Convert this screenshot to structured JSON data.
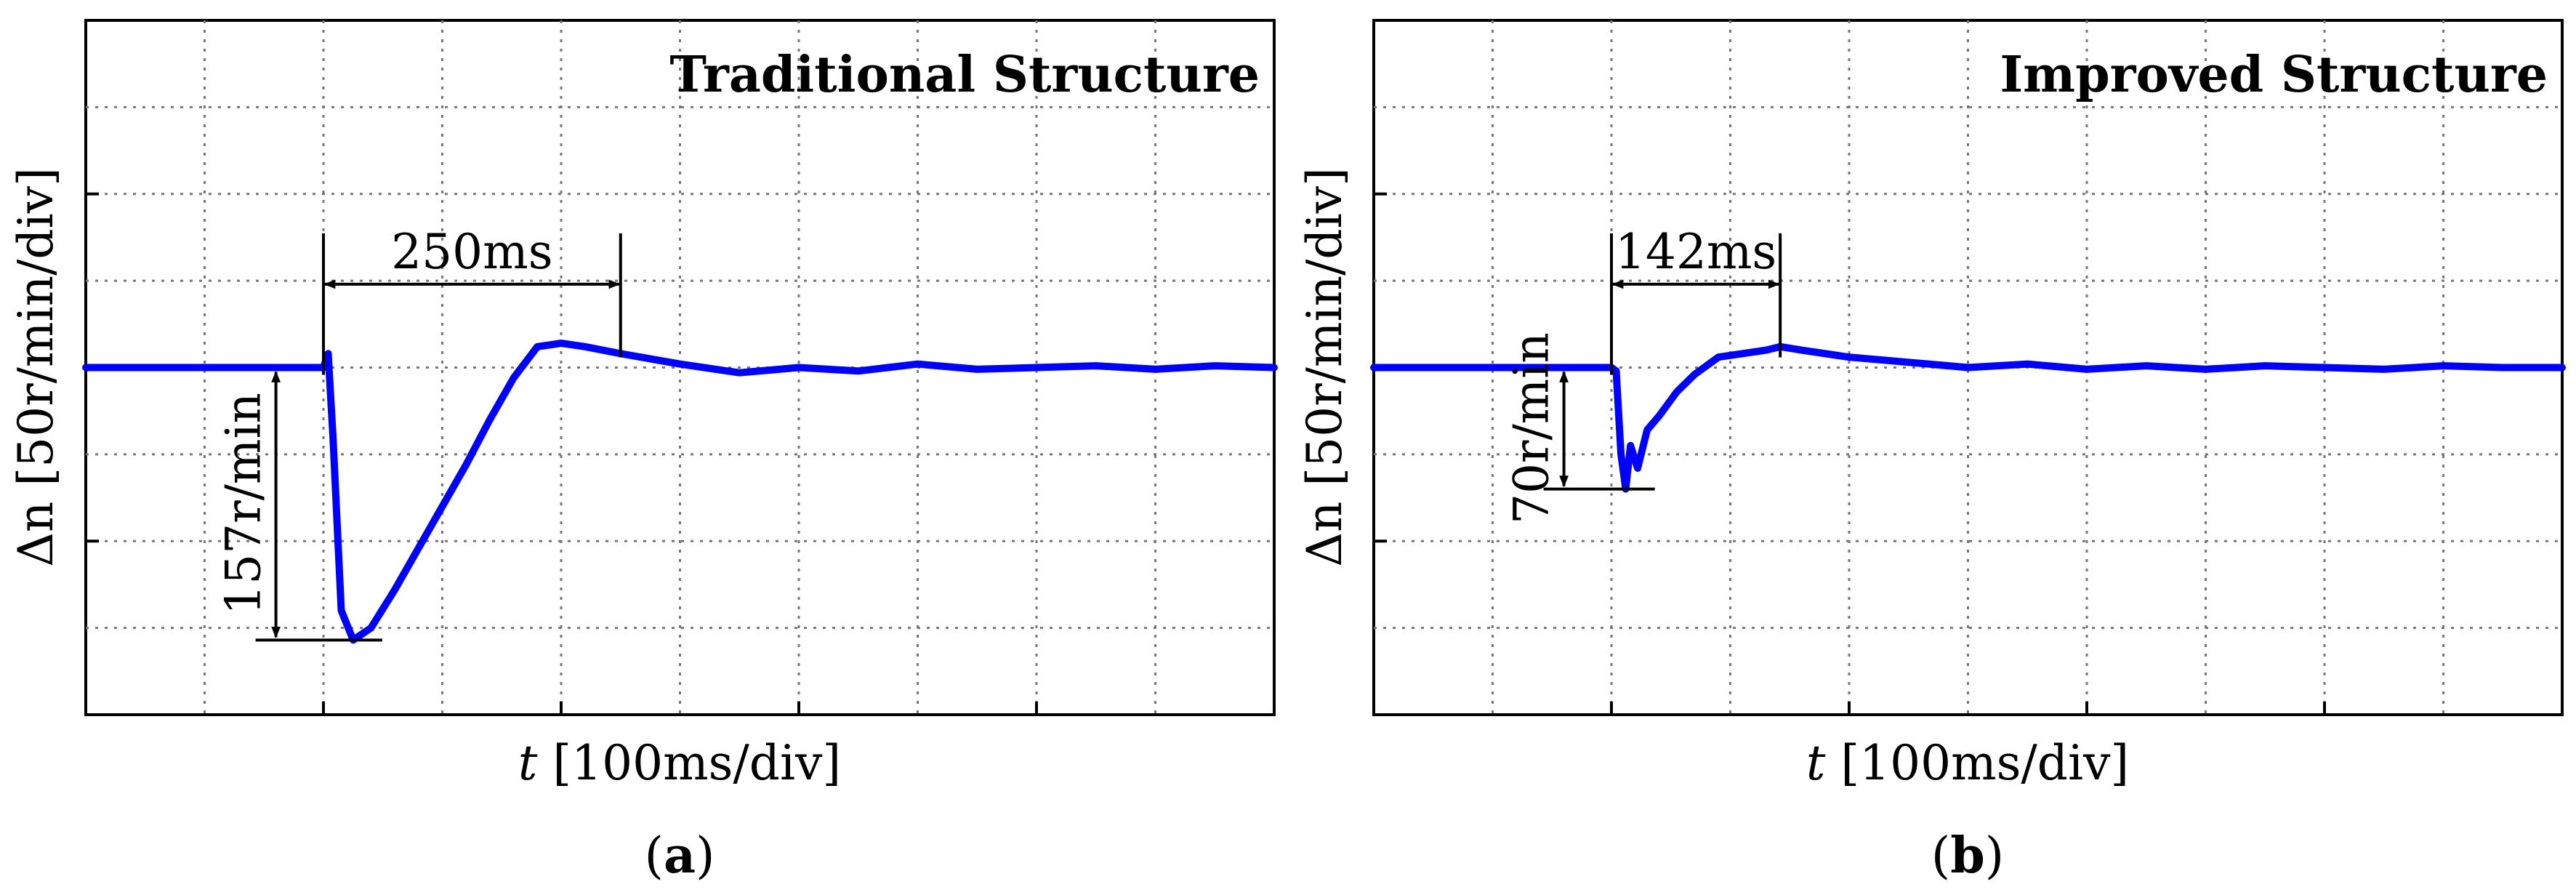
{
  "chart_data": [
    {
      "type": "line",
      "title": "Traditional Structure",
      "xlabel_var": "t",
      "xlabel_unit": "[100ms/div]",
      "ylabel_var": "Δn",
      "ylabel_unit": "[50r/min/div]",
      "x_divisions": 10,
      "y_divisions": 8,
      "grid": true,
      "x_unit": "ms",
      "y_unit": "r/min",
      "xlim": [
        0,
        1000
      ],
      "ylim": [
        -200,
        200
      ],
      "series": [
        {
          "color": "#0000ff",
          "x": [
            0,
            100,
            200,
            204,
            208,
            215,
            225,
            240,
            260,
            280,
            300,
            320,
            340,
            360,
            380,
            400,
            420,
            450,
            500,
            550,
            600,
            650,
            700,
            750,
            800,
            850,
            900,
            950,
            1000
          ],
          "values": [
            0,
            0,
            0,
            8,
            -40,
            -140,
            -157,
            -150,
            -128,
            -104,
            -80,
            -56,
            -30,
            -6,
            12,
            14,
            12,
            8,
            2,
            -3,
            0,
            -2,
            2,
            -1,
            0,
            1,
            -1,
            1,
            0
          ]
        }
      ],
      "annotations": {
        "peak_drop_label": "157r/min",
        "peak_drop_value": 157,
        "recovery_label": "250ms",
        "recovery_start": 200,
        "recovery_end": 450
      },
      "caption": "a"
    },
    {
      "type": "line",
      "title": "Improved Structure",
      "xlabel_var": "t",
      "xlabel_unit": "[100ms/div]",
      "ylabel_var": "Δn",
      "ylabel_unit": "[50r/min/div]",
      "x_divisions": 10,
      "y_divisions": 8,
      "grid": true,
      "x_unit": "ms",
      "y_unit": "r/min",
      "xlim": [
        0,
        1000
      ],
      "ylim": [
        -200,
        200
      ],
      "series": [
        {
          "color": "#0000ff",
          "x": [
            0,
            100,
            200,
            204,
            208,
            212,
            216,
            222,
            230,
            240,
            255,
            270,
            290,
            310,
            330,
            342,
            360,
            400,
            450,
            500,
            550,
            600,
            650,
            700,
            750,
            800,
            850,
            900,
            950,
            1000
          ],
          "values": [
            0,
            0,
            0,
            -2,
            -50,
            -70,
            -45,
            -58,
            -36,
            -28,
            -14,
            -4,
            6,
            8,
            10,
            12,
            10,
            6,
            3,
            0,
            2,
            -1,
            1,
            -1,
            1,
            0,
            -1,
            1,
            0,
            0
          ]
        }
      ],
      "annotations": {
        "peak_drop_label": "70r/min",
        "peak_drop_value": 70,
        "recovery_label": "142ms",
        "recovery_start": 200,
        "recovery_end": 342
      },
      "caption": "b"
    }
  ]
}
